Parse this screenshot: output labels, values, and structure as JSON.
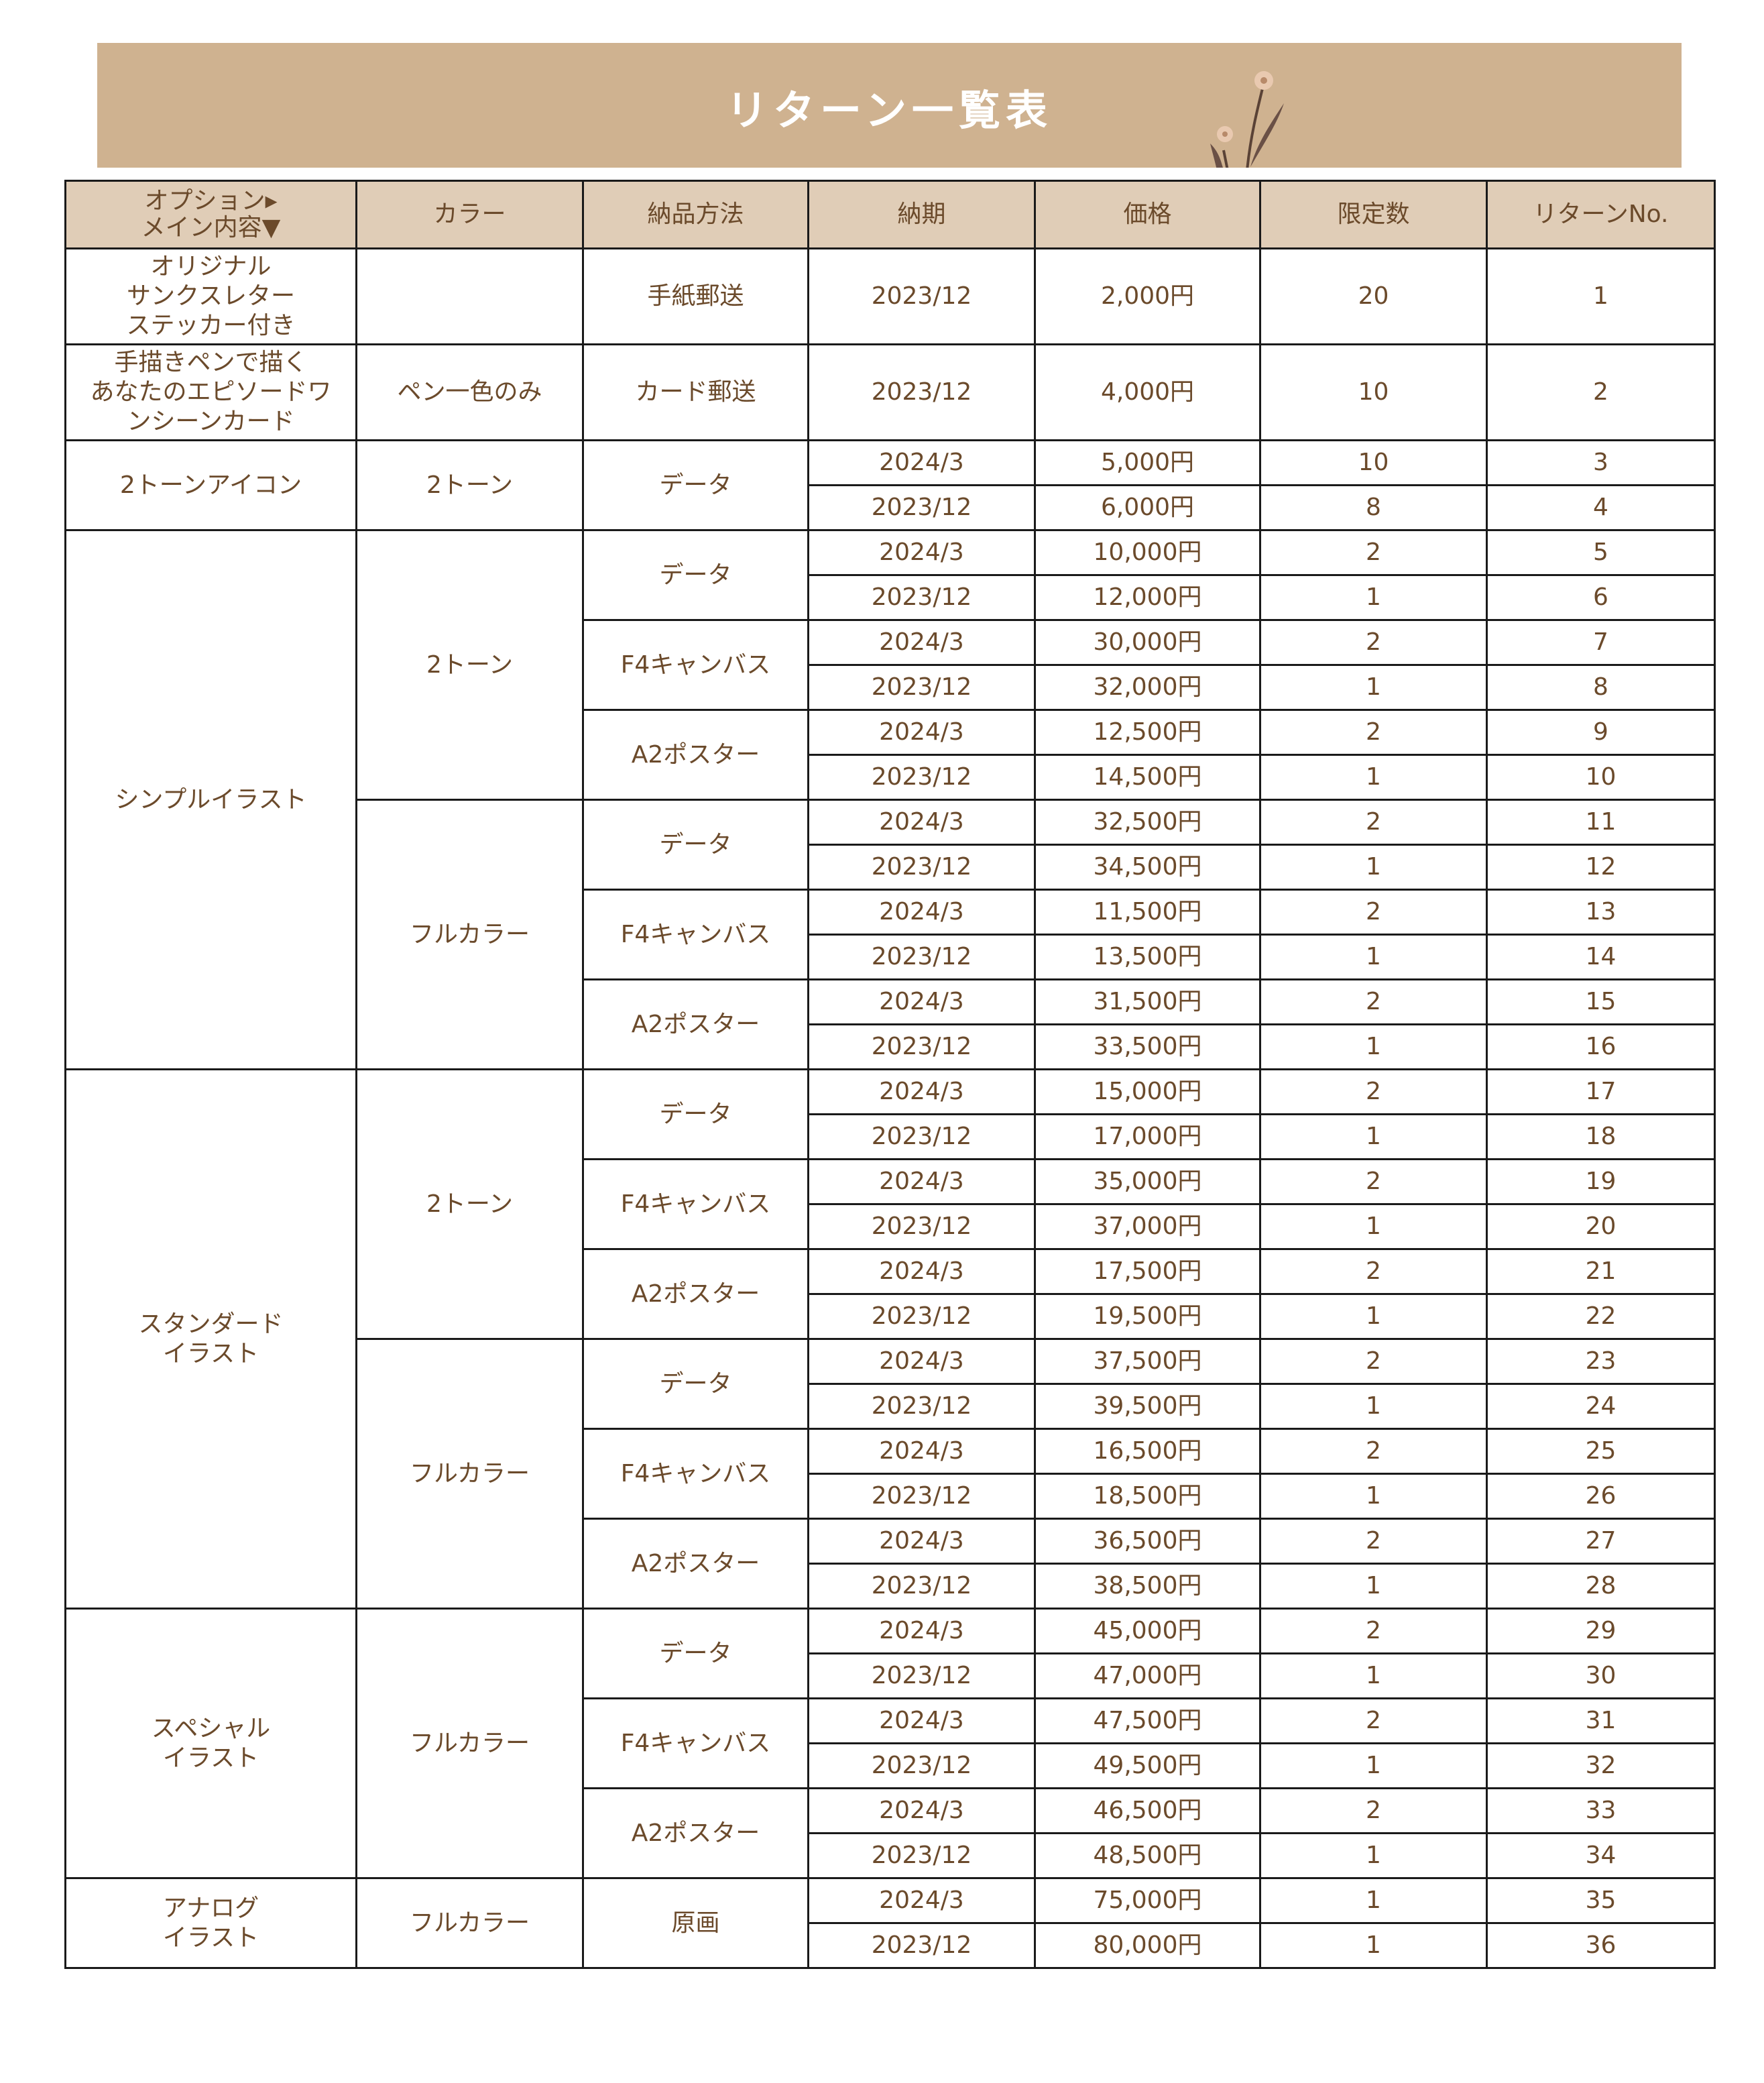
{
  "title": "リターン一覧表",
  "colors": {
    "banner": "#cfb290",
    "header": "#e0cdb7",
    "text": "#6b4a2b"
  },
  "headers": {
    "option_line1": "オプション▸",
    "option_line2": "メイン内容▼",
    "color": "カラー",
    "delivery": "納品方法",
    "date": "納期",
    "price": "価格",
    "limit": "限定数",
    "no": "リターンNo."
  },
  "groups": [
    {
      "main": [
        "オリジナル",
        "サンクスレター",
        "ステッカー付き"
      ],
      "colors": [
        {
          "color": "",
          "deliveries": [
            {
              "delivery": "手紙郵送",
              "options": [
                {
                  "date": "2023/12",
                  "price": "2,000円",
                  "limit": "20",
                  "no": "1"
                }
              ]
            }
          ]
        }
      ]
    },
    {
      "main": [
        "手描きペンで描く",
        "あなたのエピソードワ",
        "ンシーンカード"
      ],
      "colors": [
        {
          "color": "ペン一色のみ",
          "deliveries": [
            {
              "delivery": "カード郵送",
              "options": [
                {
                  "date": "2023/12",
                  "price": "4,000円",
                  "limit": "10",
                  "no": "2"
                }
              ]
            }
          ]
        }
      ]
    },
    {
      "main": [
        "2トーンアイコン"
      ],
      "colors": [
        {
          "color": "2トーン",
          "deliveries": [
            {
              "delivery": "データ",
              "options": [
                {
                  "date": "2024/3",
                  "price": "5,000円",
                  "limit": "10",
                  "no": "3"
                },
                {
                  "date": "2023/12",
                  "price": "6,000円",
                  "limit": "8",
                  "no": "4"
                }
              ]
            }
          ]
        }
      ]
    },
    {
      "main": [
        "シンプルイラスト"
      ],
      "colors": [
        {
          "color": "2トーン",
          "deliveries": [
            {
              "delivery": "データ",
              "options": [
                {
                  "date": "2024/3",
                  "price": "10,000円",
                  "limit": "2",
                  "no": "5"
                },
                {
                  "date": "2023/12",
                  "price": "12,000円",
                  "limit": "1",
                  "no": "6"
                }
              ]
            },
            {
              "delivery": "F4キャンバス",
              "options": [
                {
                  "date": "2024/3",
                  "price": "30,000円",
                  "limit": "2",
                  "no": "7"
                },
                {
                  "date": "2023/12",
                  "price": "32,000円",
                  "limit": "1",
                  "no": "8"
                }
              ]
            },
            {
              "delivery": "A2ポスター",
              "options": [
                {
                  "date": "2024/3",
                  "price": "12,500円",
                  "limit": "2",
                  "no": "9"
                },
                {
                  "date": "2023/12",
                  "price": "14,500円",
                  "limit": "1",
                  "no": "10"
                }
              ]
            }
          ]
        },
        {
          "color": "フルカラー",
          "deliveries": [
            {
              "delivery": "データ",
              "options": [
                {
                  "date": "2024/3",
                  "price": "32,500円",
                  "limit": "2",
                  "no": "11"
                },
                {
                  "date": "2023/12",
                  "price": "34,500円",
                  "limit": "1",
                  "no": "12"
                }
              ]
            },
            {
              "delivery": "F4キャンバス",
              "options": [
                {
                  "date": "2024/3",
                  "price": "11,500円",
                  "limit": "2",
                  "no": "13"
                },
                {
                  "date": "2023/12",
                  "price": "13,500円",
                  "limit": "1",
                  "no": "14"
                }
              ]
            },
            {
              "delivery": "A2ポスター",
              "options": [
                {
                  "date": "2024/3",
                  "price": "31,500円",
                  "limit": "2",
                  "no": "15"
                },
                {
                  "date": "2023/12",
                  "price": "33,500円",
                  "limit": "1",
                  "no": "16"
                }
              ]
            }
          ]
        }
      ]
    },
    {
      "main": [
        "スタンダード",
        "イラスト"
      ],
      "colors": [
        {
          "color": "2トーン",
          "deliveries": [
            {
              "delivery": "データ",
              "options": [
                {
                  "date": "2024/3",
                  "price": "15,000円",
                  "limit": "2",
                  "no": "17"
                },
                {
                  "date": "2023/12",
                  "price": "17,000円",
                  "limit": "1",
                  "no": "18"
                }
              ]
            },
            {
              "delivery": "F4キャンバス",
              "options": [
                {
                  "date": "2024/3",
                  "price": "35,000円",
                  "limit": "2",
                  "no": "19"
                },
                {
                  "date": "2023/12",
                  "price": "37,000円",
                  "limit": "1",
                  "no": "20"
                }
              ]
            },
            {
              "delivery": "A2ポスター",
              "options": [
                {
                  "date": "2024/3",
                  "price": "17,500円",
                  "limit": "2",
                  "no": "21"
                },
                {
                  "date": "2023/12",
                  "price": "19,500円",
                  "limit": "1",
                  "no": "22"
                }
              ]
            }
          ]
        },
        {
          "color": "フルカラー",
          "deliveries": [
            {
              "delivery": "データ",
              "options": [
                {
                  "date": "2024/3",
                  "price": "37,500円",
                  "limit": "2",
                  "no": "23"
                },
                {
                  "date": "2023/12",
                  "price": "39,500円",
                  "limit": "1",
                  "no": "24"
                }
              ]
            },
            {
              "delivery": "F4キャンバス",
              "options": [
                {
                  "date": "2024/3",
                  "price": "16,500円",
                  "limit": "2",
                  "no": "25"
                },
                {
                  "date": "2023/12",
                  "price": "18,500円",
                  "limit": "1",
                  "no": "26"
                }
              ]
            },
            {
              "delivery": "A2ポスター",
              "options": [
                {
                  "date": "2024/3",
                  "price": "36,500円",
                  "limit": "2",
                  "no": "27"
                },
                {
                  "date": "2023/12",
                  "price": "38,500円",
                  "limit": "1",
                  "no": "28"
                }
              ]
            }
          ]
        }
      ]
    },
    {
      "main": [
        "スペシャル",
        "イラスト"
      ],
      "colors": [
        {
          "color": "フルカラー",
          "deliveries": [
            {
              "delivery": "データ",
              "options": [
                {
                  "date": "2024/3",
                  "price": "45,000円",
                  "limit": "2",
                  "no": "29"
                },
                {
                  "date": "2023/12",
                  "price": "47,000円",
                  "limit": "1",
                  "no": "30"
                }
              ]
            },
            {
              "delivery": "F4キャンバス",
              "options": [
                {
                  "date": "2024/3",
                  "price": "47,500円",
                  "limit": "2",
                  "no": "31"
                },
                {
                  "date": "2023/12",
                  "price": "49,500円",
                  "limit": "1",
                  "no": "32"
                }
              ]
            },
            {
              "delivery": "A2ポスター",
              "options": [
                {
                  "date": "2024/3",
                  "price": "46,500円",
                  "limit": "2",
                  "no": "33"
                },
                {
                  "date": "2023/12",
                  "price": "48,500円",
                  "limit": "1",
                  "no": "34"
                }
              ]
            }
          ]
        }
      ]
    },
    {
      "main": [
        "アナログ",
        "イラスト"
      ],
      "colors": [
        {
          "color": "フルカラー",
          "deliveries": [
            {
              "delivery": "原画",
              "options": [
                {
                  "date": "2024/3",
                  "price": "75,000円",
                  "limit": "1",
                  "no": "35"
                },
                {
                  "date": "2023/12",
                  "price": "80,000円",
                  "limit": "1",
                  "no": "36"
                }
              ]
            }
          ]
        }
      ]
    }
  ]
}
